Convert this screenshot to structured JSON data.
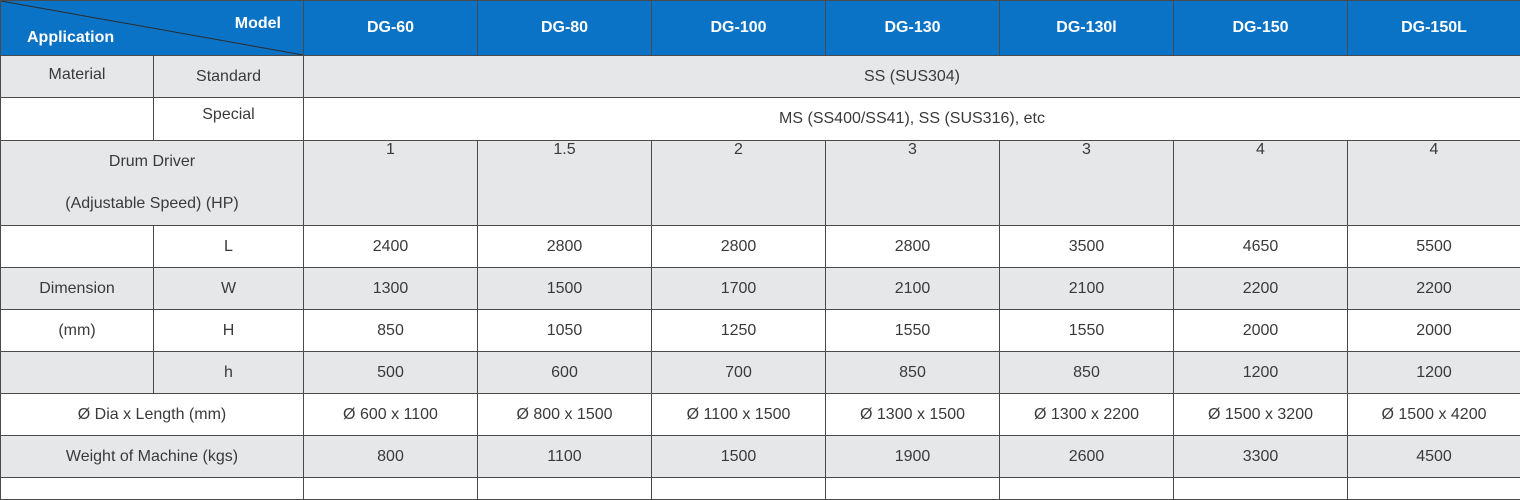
{
  "header": {
    "corner_top": "Model",
    "corner_bottom": "Application",
    "models": [
      "DG-60",
      "DG-80",
      "DG-100",
      "DG-130",
      "DG-130l",
      "DG-150",
      "DG-150L"
    ]
  },
  "material": {
    "label": "Material",
    "standard_label": "Standard",
    "standard_value": "SS (SUS304)",
    "special_label": "Special",
    "special_value": "MS (SS400/SS41), SS (SUS316), etc"
  },
  "drum_driver": {
    "label_line1": "Drum Driver",
    "label_line2": "(Adjustable Speed) (HP)",
    "values": [
      "1",
      "1.5",
      "2",
      "3",
      "3",
      "4",
      "4"
    ]
  },
  "dimension": {
    "label_line1": "Dimension",
    "label_line2": "(mm)",
    "rows": [
      {
        "label": "L",
        "values": [
          "2400",
          "2800",
          "2800",
          "2800",
          "3500",
          "4650",
          "5500"
        ]
      },
      {
        "label": "W",
        "values": [
          "1300",
          "1500",
          "1700",
          "2100",
          "2100",
          "2200",
          "2200"
        ]
      },
      {
        "label": "H",
        "values": [
          "850",
          "1050",
          "1250",
          "1550",
          "1550",
          "2000",
          "2000"
        ]
      },
      {
        "label": "h",
        "values": [
          "500",
          "600",
          "700",
          "850",
          "850",
          "1200",
          "1200"
        ]
      }
    ]
  },
  "dia_length": {
    "label": "Ø Dia x Length (mm)",
    "values": [
      "Ø 600 x 1100",
      "Ø 800 x 1500",
      "Ø 1100 x 1500",
      "Ø 1300 x 1500",
      "Ø 1300 x 2200",
      "Ø 1500 x 3200",
      "Ø 1500 x 4200"
    ]
  },
  "weight": {
    "label": "Weight of Machine (kgs)",
    "values": [
      "800",
      "1100",
      "1500",
      "1900",
      "2600",
      "3300",
      "4500"
    ]
  },
  "colors": {
    "header_bg": "#0b73c5",
    "stripe_bg": "#e6e7e8"
  }
}
